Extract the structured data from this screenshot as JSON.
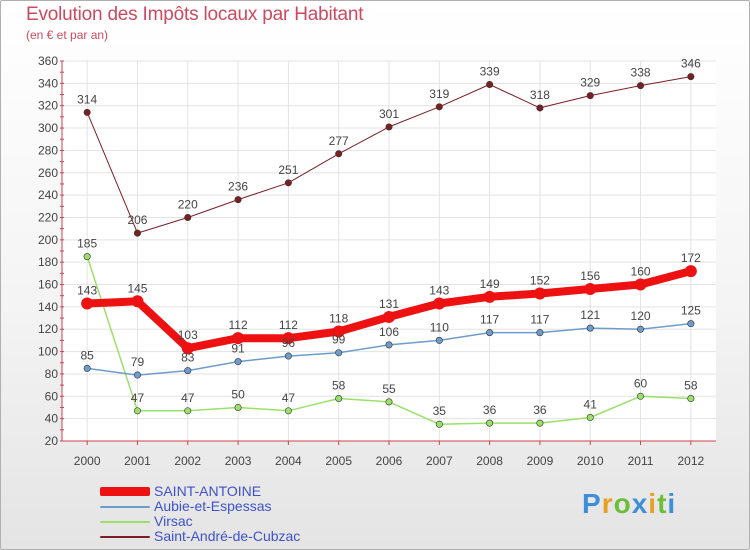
{
  "chart_data": {
    "type": "line",
    "title": "Evolution des Impôts locaux par Habitant",
    "subtitle": "(en € et par an)",
    "xlabel": "",
    "ylabel": "",
    "ylim": [
      20,
      360
    ],
    "yticks": [
      20,
      40,
      60,
      80,
      100,
      120,
      140,
      160,
      180,
      200,
      220,
      240,
      260,
      280,
      300,
      320,
      340,
      360
    ],
    "categories": [
      "2000",
      "2001",
      "2002",
      "2003",
      "2004",
      "2005",
      "2006",
      "2007",
      "2008",
      "2009",
      "2010",
      "2011",
      "2012"
    ],
    "grid": true,
    "legend_position": "bottom-left",
    "series": [
      {
        "name": "Saint-André-de-Cubzac",
        "color": "#7a1f24",
        "width": 1,
        "values": [
          314,
          206,
          220,
          236,
          251,
          277,
          301,
          319,
          339,
          318,
          329,
          338,
          346
        ]
      },
      {
        "name": "Virsac",
        "color": "#9be06a",
        "width": 1.5,
        "values": [
          185,
          47,
          47,
          50,
          47,
          58,
          55,
          35,
          36,
          36,
          41,
          60,
          58
        ]
      },
      {
        "name": "Aubie-et-Espessas",
        "color": "#6e9ccc",
        "width": 1.5,
        "values": [
          85,
          79,
          83,
          91,
          96,
          99,
          106,
          110,
          117,
          117,
          121,
          120,
          125
        ]
      },
      {
        "name": "SAINT-ANTOINE",
        "color": "#ee1111",
        "width": 8,
        "values": [
          143,
          145,
          103,
          112,
          112,
          118,
          131,
          143,
          149,
          152,
          156,
          160,
          172
        ]
      }
    ]
  },
  "legend": [
    {
      "label": "SAINT-ANTOINE",
      "color": "#ee1111"
    },
    {
      "label": "Aubie-et-Espessas",
      "color": "#6e9ccc"
    },
    {
      "label": "Virsac",
      "color": "#9be06a"
    },
    {
      "label": "Saint-André-de-Cubzac",
      "color": "#7a1f24"
    }
  ],
  "brand": {
    "letters": [
      {
        "ch": "P",
        "color": "#3f8fd8"
      },
      {
        "ch": "r",
        "color": "#e8a020"
      },
      {
        "ch": "o",
        "color": "#6cbf3a"
      },
      {
        "ch": "x",
        "color": "#3f8fd8"
      },
      {
        "ch": "i",
        "color": "#e8a020"
      },
      {
        "ch": "t",
        "color": "#6cbf3a"
      },
      {
        "ch": "i",
        "color": "#3f8fd8"
      }
    ]
  }
}
